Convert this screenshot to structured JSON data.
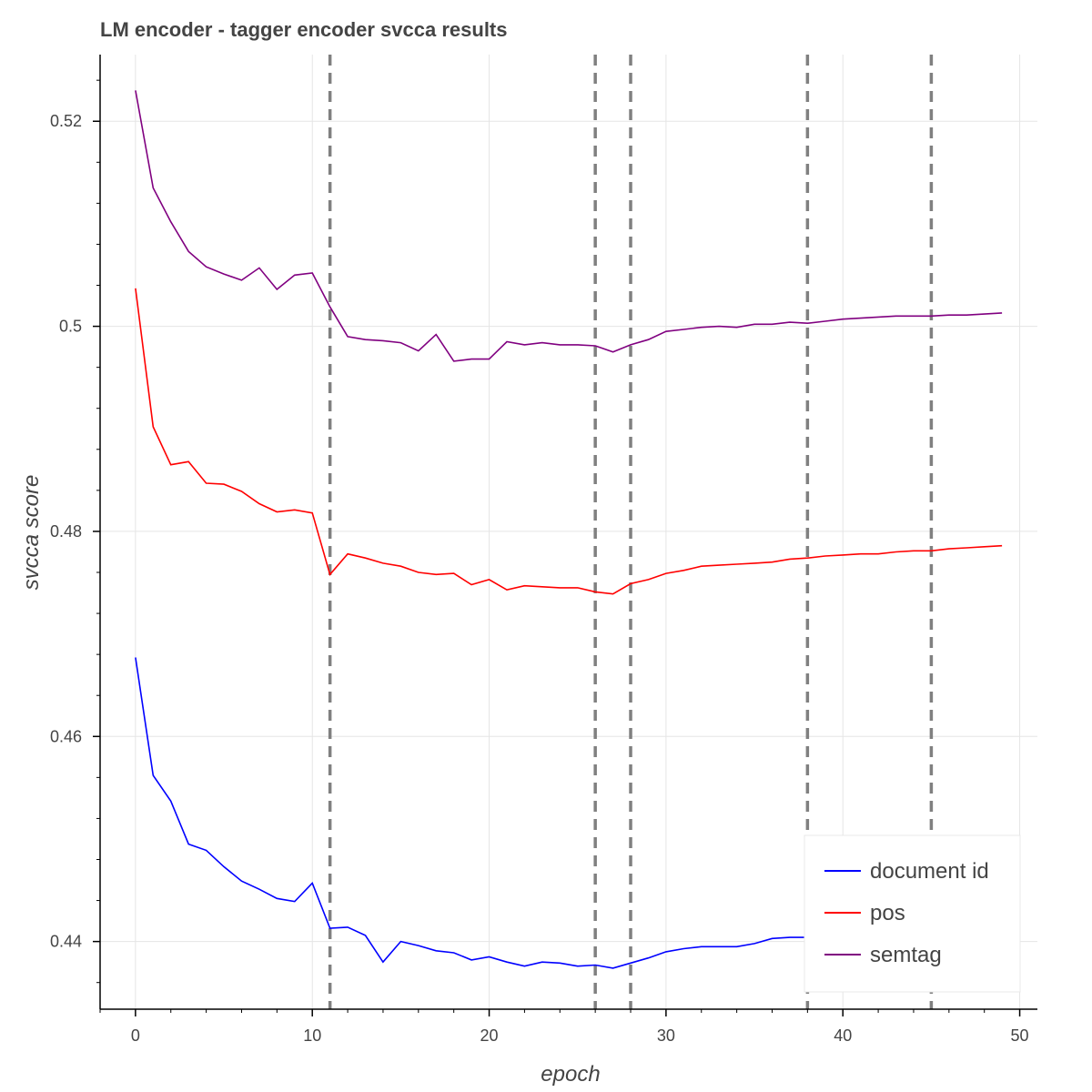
{
  "chart_data": {
    "type": "line",
    "title": "LM encoder - tagger encoder svcca results",
    "xlabel": "epoch",
    "ylabel": "svcca score",
    "xlim": [
      -2,
      51
    ],
    "ylim": [
      0.4334,
      0.5265
    ],
    "x_ticks": [
      0,
      10,
      20,
      30,
      40,
      50
    ],
    "x_tick_labels": [
      "0",
      "10",
      "20",
      "30",
      "40",
      "50"
    ],
    "y_ticks": [
      0.44,
      0.46,
      0.48,
      0.5,
      0.52
    ],
    "y_tick_labels": [
      "0.44",
      "0.46",
      "0.48",
      "0.5",
      "0.52"
    ],
    "grid": true,
    "legend_position": "bottom-right",
    "vertical_lines": [
      11,
      26,
      28,
      38,
      45
    ],
    "x": [
      0,
      1,
      2,
      3,
      4,
      5,
      6,
      7,
      8,
      9,
      10,
      11,
      12,
      13,
      14,
      15,
      16,
      17,
      18,
      19,
      20,
      21,
      22,
      23,
      24,
      25,
      26,
      27,
      28,
      29,
      30,
      31,
      32,
      33,
      34,
      35,
      36,
      37,
      38,
      39,
      40,
      41,
      42,
      43,
      44,
      45,
      46,
      47,
      48,
      49
    ],
    "series": [
      {
        "name": "document id",
        "color": "#0000ff",
        "values": [
          0.4677,
          0.4562,
          0.4537,
          0.4495,
          0.4489,
          0.4473,
          0.4459,
          0.4451,
          0.4442,
          0.4439,
          0.4457,
          0.4413,
          0.4414,
          0.4406,
          0.438,
          0.44,
          0.4396,
          0.4391,
          0.4389,
          0.4382,
          0.4385,
          0.438,
          0.4376,
          0.438,
          0.4379,
          0.4376,
          0.4377,
          0.4374,
          0.4379,
          0.4384,
          0.439,
          0.4393,
          0.4395,
          0.4395,
          0.4395,
          0.4398,
          0.4403,
          0.4404,
          0.4404,
          0.4406,
          0.4406,
          0.4407,
          0.4408,
          0.4409,
          0.441,
          0.441,
          0.4411,
          0.4412,
          0.4413,
          0.4414
        ]
      },
      {
        "name": "pos",
        "color": "#ff0000",
        "values": [
          0.5037,
          0.4902,
          0.4865,
          0.4868,
          0.4847,
          0.4846,
          0.4839,
          0.4827,
          0.4819,
          0.4821,
          0.4818,
          0.4758,
          0.4778,
          0.4774,
          0.4769,
          0.4766,
          0.476,
          0.4758,
          0.4759,
          0.4748,
          0.4753,
          0.4743,
          0.4747,
          0.4746,
          0.4745,
          0.4745,
          0.4741,
          0.4739,
          0.4749,
          0.4753,
          0.4759,
          0.4762,
          0.4766,
          0.4767,
          0.4768,
          0.4769,
          0.477,
          0.4773,
          0.4774,
          0.4776,
          0.4777,
          0.4778,
          0.4778,
          0.478,
          0.4781,
          0.4781,
          0.4783,
          0.4784,
          0.4785,
          0.4786
        ]
      },
      {
        "name": "semtag",
        "color": "#800080",
        "values": [
          0.523,
          0.5135,
          0.5102,
          0.5073,
          0.5058,
          0.5051,
          0.5045,
          0.5057,
          0.5036,
          0.505,
          0.5052,
          0.5019,
          0.499,
          0.4987,
          0.4986,
          0.4984,
          0.4976,
          0.4992,
          0.4966,
          0.4968,
          0.4968,
          0.4985,
          0.4982,
          0.4984,
          0.4982,
          0.4982,
          0.4981,
          0.4975,
          0.4982,
          0.4987,
          0.4995,
          0.4997,
          0.4999,
          0.5,
          0.4999,
          0.5002,
          0.5002,
          0.5004,
          0.5003,
          0.5005,
          0.5007,
          0.5008,
          0.5009,
          0.501,
          0.501,
          0.501,
          0.5011,
          0.5011,
          0.5012,
          0.5013
        ]
      }
    ]
  }
}
